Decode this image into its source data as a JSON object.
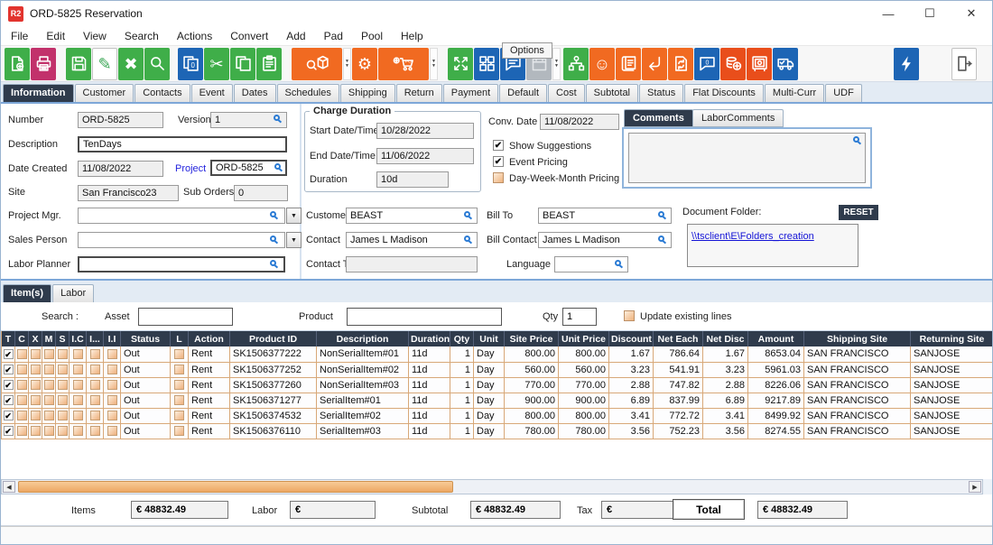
{
  "window": {
    "logo_text": "R2",
    "title": "ORD-5825 Reservation"
  },
  "menu": [
    "File",
    "Edit",
    "View",
    "Search",
    "Actions",
    "Convert",
    "Add",
    "Pad",
    "Pool",
    "Help"
  ],
  "tooltip": "Options",
  "colors": {
    "accent_green": "#3fae49",
    "accent_pink": "#c2316b",
    "accent_blue": "#1d65b5",
    "accent_orange": "#f16a21",
    "accent_red": "#e94e1b",
    "tab_navy": "#2f3b4c",
    "link_blue": "#1414d6",
    "checkbox_peach": "#eeb27c",
    "scroll_thumb_orange": "#eda763",
    "grid_tan": "#d8a878"
  },
  "toolbar": {
    "items": [
      {
        "name": "new-document-icon",
        "color": "green"
      },
      {
        "name": "print-icon",
        "color": "pink"
      },
      {
        "name": "save-icon",
        "color": "green"
      },
      {
        "name": "edit-icon",
        "color": "white"
      },
      {
        "name": "delete-icon",
        "color": "green"
      },
      {
        "name": "search-icon",
        "color": "green"
      },
      {
        "name": "copy-zero-icon",
        "color": "blue"
      },
      {
        "name": "cut-icon",
        "color": "green"
      },
      {
        "name": "copy-icon",
        "color": "green"
      },
      {
        "name": "paste-icon",
        "color": "green"
      },
      {
        "name": "product-search-icon",
        "color": "orange",
        "dropdown": true
      },
      {
        "name": "gears-icon",
        "color": "orange"
      },
      {
        "name": "add-po-cart-icon",
        "color": "orange",
        "dropdown": true
      },
      {
        "name": "expand-icon",
        "color": "green"
      },
      {
        "name": "options-flowchart-icon",
        "color": "blue",
        "tooltip": "Options"
      },
      {
        "name": "comment-icon",
        "color": "blue"
      },
      {
        "name": "calendar-icon",
        "color": "gray",
        "dropdown": true,
        "disabled": true
      },
      {
        "name": "hierarchy-icon",
        "color": "green"
      },
      {
        "name": "smiley-icon",
        "color": "orange"
      },
      {
        "name": "scroll-icon",
        "color": "orange"
      },
      {
        "name": "return-arrow-icon",
        "color": "orange"
      },
      {
        "name": "doc-sync-icon",
        "color": "orange"
      },
      {
        "name": "comment-zero-icon",
        "color": "blue"
      },
      {
        "name": "add-money-icon",
        "color": "red"
      },
      {
        "name": "vault-icon",
        "color": "red"
      },
      {
        "name": "truck-icon",
        "color": "blue"
      },
      {
        "name": "lightning-icon",
        "color": "blue"
      },
      {
        "name": "exit-icon",
        "color": "white"
      }
    ]
  },
  "main_tabs": [
    "Information",
    "Customer",
    "Contacts",
    "Event",
    "Dates",
    "Schedules",
    "Shipping",
    "Return",
    "Payment",
    "Default",
    "Cost",
    "Subtotal",
    "Status",
    "Flat Discounts",
    "Multi-Curr",
    "UDF"
  ],
  "active_tab_index": 0,
  "form": {
    "number_label": "Number",
    "number_value": "ORD-5825",
    "version_label": "Version",
    "version_value": "1",
    "description_label": "Description",
    "description_value": "TenDays",
    "date_created_label": "Date Created",
    "date_created_value": "11/08/2022",
    "project_label": "Project",
    "project_value": "ORD-5825",
    "site_label": "Site",
    "site_value": "San Francisco23",
    "sub_orders_label": "Sub Orders",
    "sub_orders_value": "0",
    "project_mgr_label": "Project Mgr.",
    "project_mgr_value": "",
    "sales_person_label": "Sales Person",
    "sales_person_value": "",
    "labor_planner_label": "Labor Planner",
    "labor_planner_value": "",
    "charge": {
      "legend": "Charge Duration",
      "start_label": "Start Date/Time",
      "start_value": "10/28/2022",
      "end_label": "End Date/Time",
      "end_value": "11/06/2022",
      "duration_label": "Duration",
      "duration_value": "10d"
    },
    "conv_date_label": "Conv. Date",
    "conv_date_value": "11/08/2022",
    "pricing_checks": [
      {
        "label": "Show Suggestions",
        "checked": true
      },
      {
        "label": "Event Pricing",
        "checked": true
      },
      {
        "label": "Day-Week-Month Pricing",
        "checked": false
      }
    ],
    "customer_label": "Customer",
    "customer_value": "BEAST",
    "bill_to_label": "Bill To",
    "bill_to_value": "BEAST",
    "contact_label": "Contact",
    "contact_value": "James L Madison",
    "bill_contact_label": "Bill Contact",
    "bill_contact_value": "James L Madison",
    "contact_tel_label": "Contact Tel #",
    "contact_tel_value": "",
    "language_label": "Language",
    "language_value": "",
    "comments_tabs": [
      "Comments",
      "LaborComments"
    ],
    "active_comments_tab_index": 0,
    "comments_value": "",
    "document_folder_label": "Document Folder:",
    "reset_label": "RESET",
    "folder_link": "\\\\tsclient\\E\\Folders_creation"
  },
  "items_section": {
    "tabs": [
      "Item(s)",
      "Labor"
    ],
    "active_tab_index": 0,
    "search_label": "Search :",
    "asset_label": "Asset",
    "asset_value": "",
    "product_label": "Product",
    "product_value": "",
    "qty_label": "Qty",
    "qty_value": "1",
    "update_lines_label": "Update existing lines",
    "update_lines_checked": false
  },
  "table": {
    "check_columns": [
      "T",
      "C",
      "X",
      "M",
      "S",
      "I.C",
      "I...",
      "I.I"
    ],
    "columns": [
      "Status",
      "L",
      "Action",
      "Product ID",
      "Description",
      "Duration",
      "Qty",
      "Unit",
      "Site Price",
      "Unit Price",
      "Discount",
      "Net Each",
      "Net Disc",
      "Amount",
      "Shipping Site",
      "Returning Site"
    ],
    "row_keys": [
      "status",
      "l_check",
      "action",
      "product_id",
      "description",
      "duration",
      "qty",
      "unit",
      "site_price",
      "unit_price",
      "discount",
      "net_each",
      "net_disc",
      "amount",
      "shipping_site",
      "returning_site"
    ],
    "rows": [
      {
        "checks": [
          true,
          false,
          false,
          false,
          false,
          false,
          false,
          false
        ],
        "status": "Out",
        "action": "Rent",
        "product_id": "SK1506377222",
        "description": "NonSerialItem#01",
        "duration": "11d",
        "qty": "1",
        "unit": "Day",
        "site_price": "800.00",
        "unit_price": "800.00",
        "discount": "1.67",
        "net_each": "786.64",
        "net_disc": "1.67",
        "amount": "8653.04",
        "shipping_site": "SAN FRANCISCO",
        "returning_site": "SANJOSE"
      },
      {
        "checks": [
          true,
          false,
          false,
          false,
          false,
          false,
          false,
          false
        ],
        "status": "Out",
        "action": "Rent",
        "product_id": "SK1506377252",
        "description": "NonSerialItem#02",
        "duration": "11d",
        "qty": "1",
        "unit": "Day",
        "site_price": "560.00",
        "unit_price": "560.00",
        "discount": "3.23",
        "net_each": "541.91",
        "net_disc": "3.23",
        "amount": "5961.03",
        "shipping_site": "SAN FRANCISCO",
        "returning_site": "SANJOSE"
      },
      {
        "checks": [
          true,
          false,
          false,
          false,
          false,
          false,
          false,
          false
        ],
        "status": "Out",
        "action": "Rent",
        "product_id": "SK1506377260",
        "description": "NonSerialItem#03",
        "duration": "11d",
        "qty": "1",
        "unit": "Day",
        "site_price": "770.00",
        "unit_price": "770.00",
        "discount": "2.88",
        "net_each": "747.82",
        "net_disc": "2.88",
        "amount": "8226.06",
        "shipping_site": "SAN FRANCISCO",
        "returning_site": "SANJOSE"
      },
      {
        "checks": [
          true,
          false,
          false,
          false,
          false,
          false,
          false,
          false
        ],
        "status": "Out",
        "action": "Rent",
        "product_id": "SK1506371277",
        "description": "SerialItem#01",
        "duration": "11d",
        "qty": "1",
        "unit": "Day",
        "site_price": "900.00",
        "unit_price": "900.00",
        "discount": "6.89",
        "net_each": "837.99",
        "net_disc": "6.89",
        "amount": "9217.89",
        "shipping_site": "SAN FRANCISCO",
        "returning_site": "SANJOSE"
      },
      {
        "checks": [
          true,
          false,
          false,
          false,
          false,
          false,
          false,
          false
        ],
        "status": "Out",
        "action": "Rent",
        "product_id": "SK1506374532",
        "description": "SerialItem#02",
        "duration": "11d",
        "qty": "1",
        "unit": "Day",
        "site_price": "800.00",
        "unit_price": "800.00",
        "discount": "3.41",
        "net_each": "772.72",
        "net_disc": "3.41",
        "amount": "8499.92",
        "shipping_site": "SAN FRANCISCO",
        "returning_site": "SANJOSE"
      },
      {
        "checks": [
          true,
          false,
          false,
          false,
          false,
          false,
          false,
          false
        ],
        "status": "Out",
        "action": "Rent",
        "product_id": "SK1506376110",
        "description": "SerialItem#03",
        "duration": "11d",
        "qty": "1",
        "unit": "Day",
        "site_price": "780.00",
        "unit_price": "780.00",
        "discount": "3.56",
        "net_each": "752.23",
        "net_disc": "3.56",
        "amount": "8274.55",
        "shipping_site": "SAN FRANCISCO",
        "returning_site": "SANJOSE"
      }
    ]
  },
  "totals": {
    "items_label": "Items",
    "items_value": "€ 48832.49",
    "labor_label": "Labor",
    "labor_value": "€",
    "subtotal_label": "Subtotal",
    "subtotal_value": "€ 48832.49",
    "tax_label": "Tax",
    "tax_value": "€",
    "total_label": "Total",
    "total_value": "€ 48832.49"
  }
}
